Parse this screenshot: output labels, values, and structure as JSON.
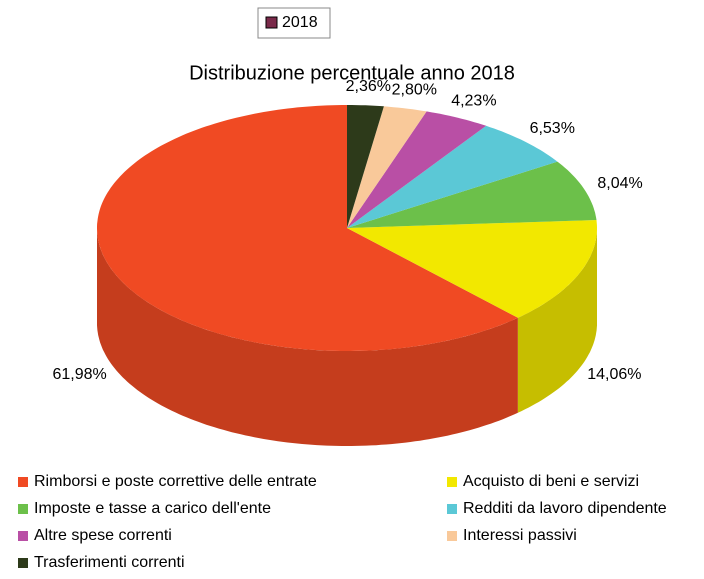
{
  "chart_data": {
    "type": "pie",
    "title": "Distribuzione percentuale anno 2018",
    "series_name": "2018",
    "series_color": "#7a2a4a",
    "categories": [
      "Rimborsi e poste correttive delle entrate",
      "Acquisto di beni e servizi",
      "Imposte e tasse a carico dell'ente",
      "Redditi da lavoro dipendente",
      "Altre spese correnti",
      "Interessi passivi",
      "Trasferimenti correnti"
    ],
    "values": [
      61.98,
      14.06,
      8.04,
      6.53,
      4.23,
      2.8,
      2.36
    ],
    "value_labels": [
      "61,98%",
      "14,06%",
      "8,04%",
      "6,53%",
      "4,23%",
      "2,80%",
      "2,36%"
    ],
    "colors": [
      "#f04a23",
      "#f2e800",
      "#6cc04a",
      "#5bc8d6",
      "#b94fa5",
      "#f9c99a",
      "#2d3a1a"
    ]
  }
}
